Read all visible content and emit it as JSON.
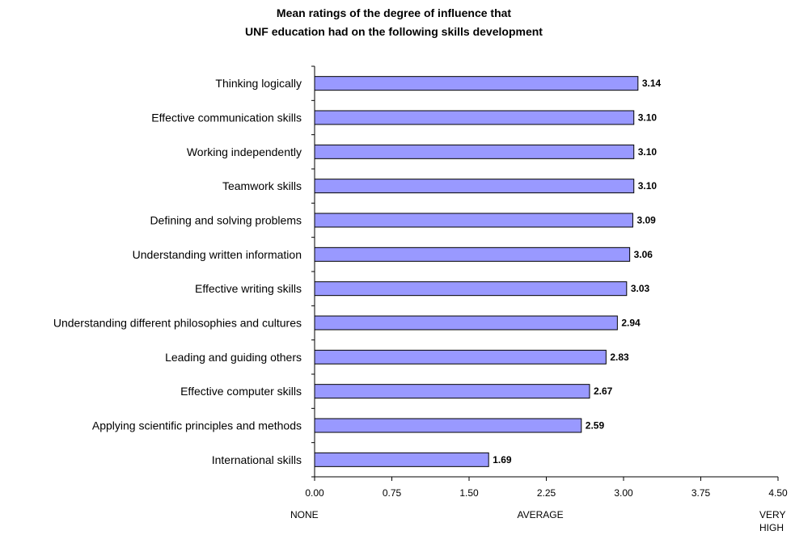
{
  "chart_data": {
    "type": "bar",
    "orientation": "horizontal",
    "title": "Mean ratings of the degree of influence that",
    "subtitle": "UNF education had on the following skills development",
    "categories": [
      "Thinking logically",
      "Effective communication skills",
      "Working independently",
      "Teamwork skills",
      "Defining and solving problems",
      "Understanding written information",
      "Effective writing skills",
      "Understanding different philosophies and cultures",
      "Leading and guiding others",
      "Effective computer skills",
      "Applying scientific principles and methods",
      "International skills"
    ],
    "values": [
      3.14,
      3.1,
      3.1,
      3.1,
      3.09,
      3.06,
      3.03,
      2.94,
      2.83,
      2.67,
      2.59,
      1.69
    ],
    "value_labels": [
      "3.14",
      "3.10",
      "3.10",
      "3.10",
      "3.09",
      "3.06",
      "3.03",
      "2.94",
      "2.83",
      "2.67",
      "2.59",
      "1.69"
    ],
    "xlabel": "",
    "ylabel": "",
    "xlim": [
      0,
      4.5
    ],
    "x_ticks": [
      0,
      0.75,
      1.5,
      2.25,
      3.0,
      3.75,
      4.5
    ],
    "x_tick_labels": [
      "0.00",
      "0.75",
      "1.50",
      "2.25",
      "3.00",
      "3.75",
      "4.50"
    ],
    "scale_anchors": [
      {
        "value": 0,
        "lines": [
          "NONE"
        ]
      },
      {
        "value": 2.25,
        "lines": [
          "AVERAGE"
        ]
      },
      {
        "value": 4.5,
        "lines": [
          "VERY",
          "HIGH"
        ]
      }
    ],
    "grid": false,
    "legend": "none",
    "bar_color": "#9999ff"
  }
}
